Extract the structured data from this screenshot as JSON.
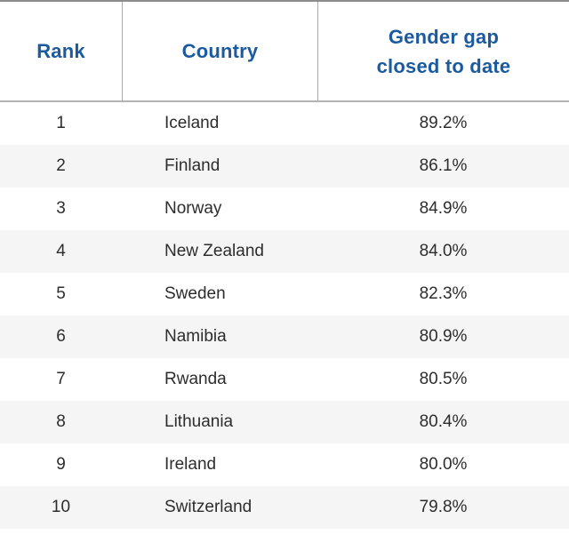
{
  "colors": {
    "header_text": "#1b5a9e",
    "top_border": "#8c8c8c",
    "header_bottom_border": "#b3b3b3",
    "column_divider": "#a8a8a8",
    "alt_row_background": "#f5f5f5",
    "body_text": "#2d2d2d"
  },
  "header": {
    "rank": "Rank",
    "country": "Country",
    "gap": "Gender gap closed to date"
  },
  "rows": [
    {
      "rank": "1",
      "country": "Iceland",
      "value": "89.2%"
    },
    {
      "rank": "2",
      "country": "Finland",
      "value": "86.1%"
    },
    {
      "rank": "3",
      "country": "Norway",
      "value": "84.9%"
    },
    {
      "rank": "4",
      "country": "New Zealand",
      "value": "84.0%"
    },
    {
      "rank": "5",
      "country": "Sweden",
      "value": "82.3%"
    },
    {
      "rank": "6",
      "country": "Namibia",
      "value": "80.9%"
    },
    {
      "rank": "7",
      "country": "Rwanda",
      "value": "80.5%"
    },
    {
      "rank": "8",
      "country": "Lithuania",
      "value": "80.4%"
    },
    {
      "rank": "9",
      "country": "Ireland",
      "value": "80.0%"
    },
    {
      "rank": "10",
      "country": "Switzerland",
      "value": "79.8%"
    }
  ],
  "chart_data": {
    "type": "table",
    "title": "",
    "columns": [
      "Rank",
      "Country",
      "Gender gap closed to date"
    ],
    "rows": [
      [
        1,
        "Iceland",
        89.2
      ],
      [
        2,
        "Finland",
        86.1
      ],
      [
        3,
        "Norway",
        84.9
      ],
      [
        4,
        "New Zealand",
        84.0
      ],
      [
        5,
        "Sweden",
        82.3
      ],
      [
        6,
        "Namibia",
        80.9
      ],
      [
        7,
        "Rwanda",
        80.5
      ],
      [
        8,
        "Lithuania",
        80.4
      ],
      [
        9,
        "Ireland",
        80.0
      ],
      [
        10,
        "Switzerland",
        79.8
      ]
    ],
    "value_unit": "%",
    "layout": {
      "alternating_rows": true,
      "header_dividers": true,
      "value_alignment": "center"
    }
  }
}
